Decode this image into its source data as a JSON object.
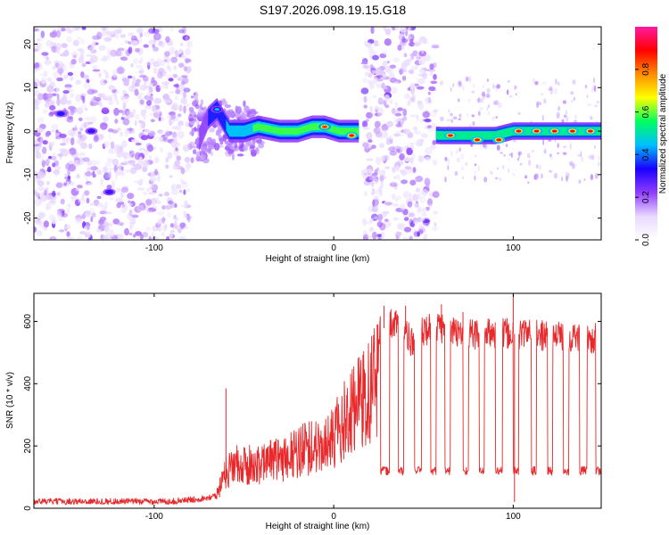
{
  "title": "S197.2026.098.19.15.G18",
  "chart_data": [
    {
      "type": "heatmap",
      "xlabel": "Height of straight line (km)",
      "ylabel": "Frequency (Hz)",
      "xlim": [
        -167,
        149
      ],
      "ylim": [
        -25,
        24
      ],
      "xticks": [
        -100,
        0,
        100
      ],
      "yticks": [
        -20,
        -10,
        0,
        10,
        20
      ],
      "colorbar": {
        "label": "Normalized spectral amplitude",
        "range": [
          0,
          1
        ],
        "ticks": [
          0.0,
          0.2,
          0.4,
          0.6,
          0.8
        ],
        "tick_labels": [
          "0.0",
          "0.2",
          "0.4",
          "0.6",
          "0.8"
        ],
        "colormap": [
          "#ffffff",
          "#e8d8ff",
          "#8f3cff",
          "#1a00ff",
          "#00bfff",
          "#00ff60",
          "#ffff00",
          "#ff8c00",
          "#ff0000",
          "#ff1aa0"
        ]
      },
      "noise_regions": [
        [
          -167,
          -80
        ],
        [
          17,
          57
        ]
      ],
      "signal_track": [
        {
          "x": -75,
          "f": -2
        },
        {
          "x": -70,
          "f": 3
        },
        {
          "x": -65,
          "f": 5
        },
        {
          "x": -58,
          "f": 0
        },
        {
          "x": -50,
          "f": 0
        },
        {
          "x": -42,
          "f": 1
        },
        {
          "x": -30,
          "f": 0
        },
        {
          "x": -20,
          "f": 0
        },
        {
          "x": -12,
          "f": 1
        },
        {
          "x": -5,
          "f": 1
        },
        {
          "x": 3,
          "f": 0
        },
        {
          "x": 13,
          "f": 0
        },
        {
          "x": 60,
          "f": -1
        },
        {
          "x": 75,
          "f": -1
        },
        {
          "x": 90,
          "f": -1
        },
        {
          "x": 100,
          "f": 0
        },
        {
          "x": 115,
          "f": 0
        },
        {
          "x": 130,
          "f": 0
        },
        {
          "x": 148,
          "f": 0
        }
      ],
      "hot_spots": [
        {
          "x": -152,
          "f": 4,
          "v": 0.35
        },
        {
          "x": -135,
          "f": 0,
          "v": 0.3
        },
        {
          "x": -125,
          "f": -14,
          "v": 0.3
        },
        {
          "x": -65,
          "f": 5,
          "v": 0.45
        },
        {
          "x": -5,
          "f": 1,
          "v": 0.85
        },
        {
          "x": 10,
          "f": -1,
          "v": 0.9
        },
        {
          "x": 65,
          "f": -1,
          "v": 0.9
        },
        {
          "x": 80,
          "f": -2,
          "v": 0.9
        },
        {
          "x": 92,
          "f": -2,
          "v": 0.9
        },
        {
          "x": 103,
          "f": 0,
          "v": 0.9
        },
        {
          "x": 113,
          "f": 0,
          "v": 0.9
        },
        {
          "x": 123,
          "f": 0,
          "v": 0.9
        },
        {
          "x": 133,
          "f": 0,
          "v": 0.9
        },
        {
          "x": 143,
          "f": 0,
          "v": 0.9
        }
      ]
    },
    {
      "type": "line",
      "xlabel": "Height of straight line (km)",
      "ylabel": "SNR (10 * v/v)",
      "xlim": [
        -167,
        149
      ],
      "ylim": [
        0,
        690
      ],
      "xticks": [
        -100,
        0,
        100
      ],
      "yticks": [
        0,
        200,
        400,
        600
      ],
      "color": "#e8282a",
      "series": [
        {
          "name": "SNR",
          "envelope": {
            "x": [
              -167,
              -90,
              -75,
              -66,
              -60,
              -55,
              -45,
              -30,
              -20,
              -10,
              0,
              10,
              20,
              25,
              30,
              35,
              40,
              45,
              50,
              55,
              60,
              65,
              70,
              80,
              90,
              100,
              110,
              120,
              130,
              140,
              149
            ],
            "y": [
              22,
              22,
              30,
              40,
              150,
              180,
              180,
              200,
              230,
              260,
              300,
              400,
              480,
              560,
              590,
              600,
              560,
              520,
              570,
              580,
              580,
              570,
              560,
              560,
              560,
              560,
              560,
              550,
              550,
              550,
              540
            ]
          },
          "dips": [
            [
              26,
              31
            ],
            [
              36,
              39
            ],
            [
              45,
              49
            ],
            [
              54,
              57
            ],
            [
              62,
              65
            ],
            [
              72,
              75
            ],
            [
              81,
              84
            ],
            [
              90,
              94
            ],
            [
              100,
              103
            ],
            [
              110,
              113
            ],
            [
              119,
              122
            ],
            [
              128,
              131
            ],
            [
              137,
              141
            ],
            [
              146,
              149
            ]
          ],
          "dip_level": 120,
          "spikes": [
            {
              "x": -60,
              "y": 385
            },
            {
              "x": 28,
              "y": 650
            },
            {
              "x": 40,
              "y": 650
            },
            {
              "x": 60,
              "y": 655
            },
            {
              "x": 100,
              "y": 690
            },
            {
              "x": 100.7,
              "y": 20
            },
            {
              "x": 72,
              "y": 630
            }
          ]
        }
      ]
    }
  ]
}
